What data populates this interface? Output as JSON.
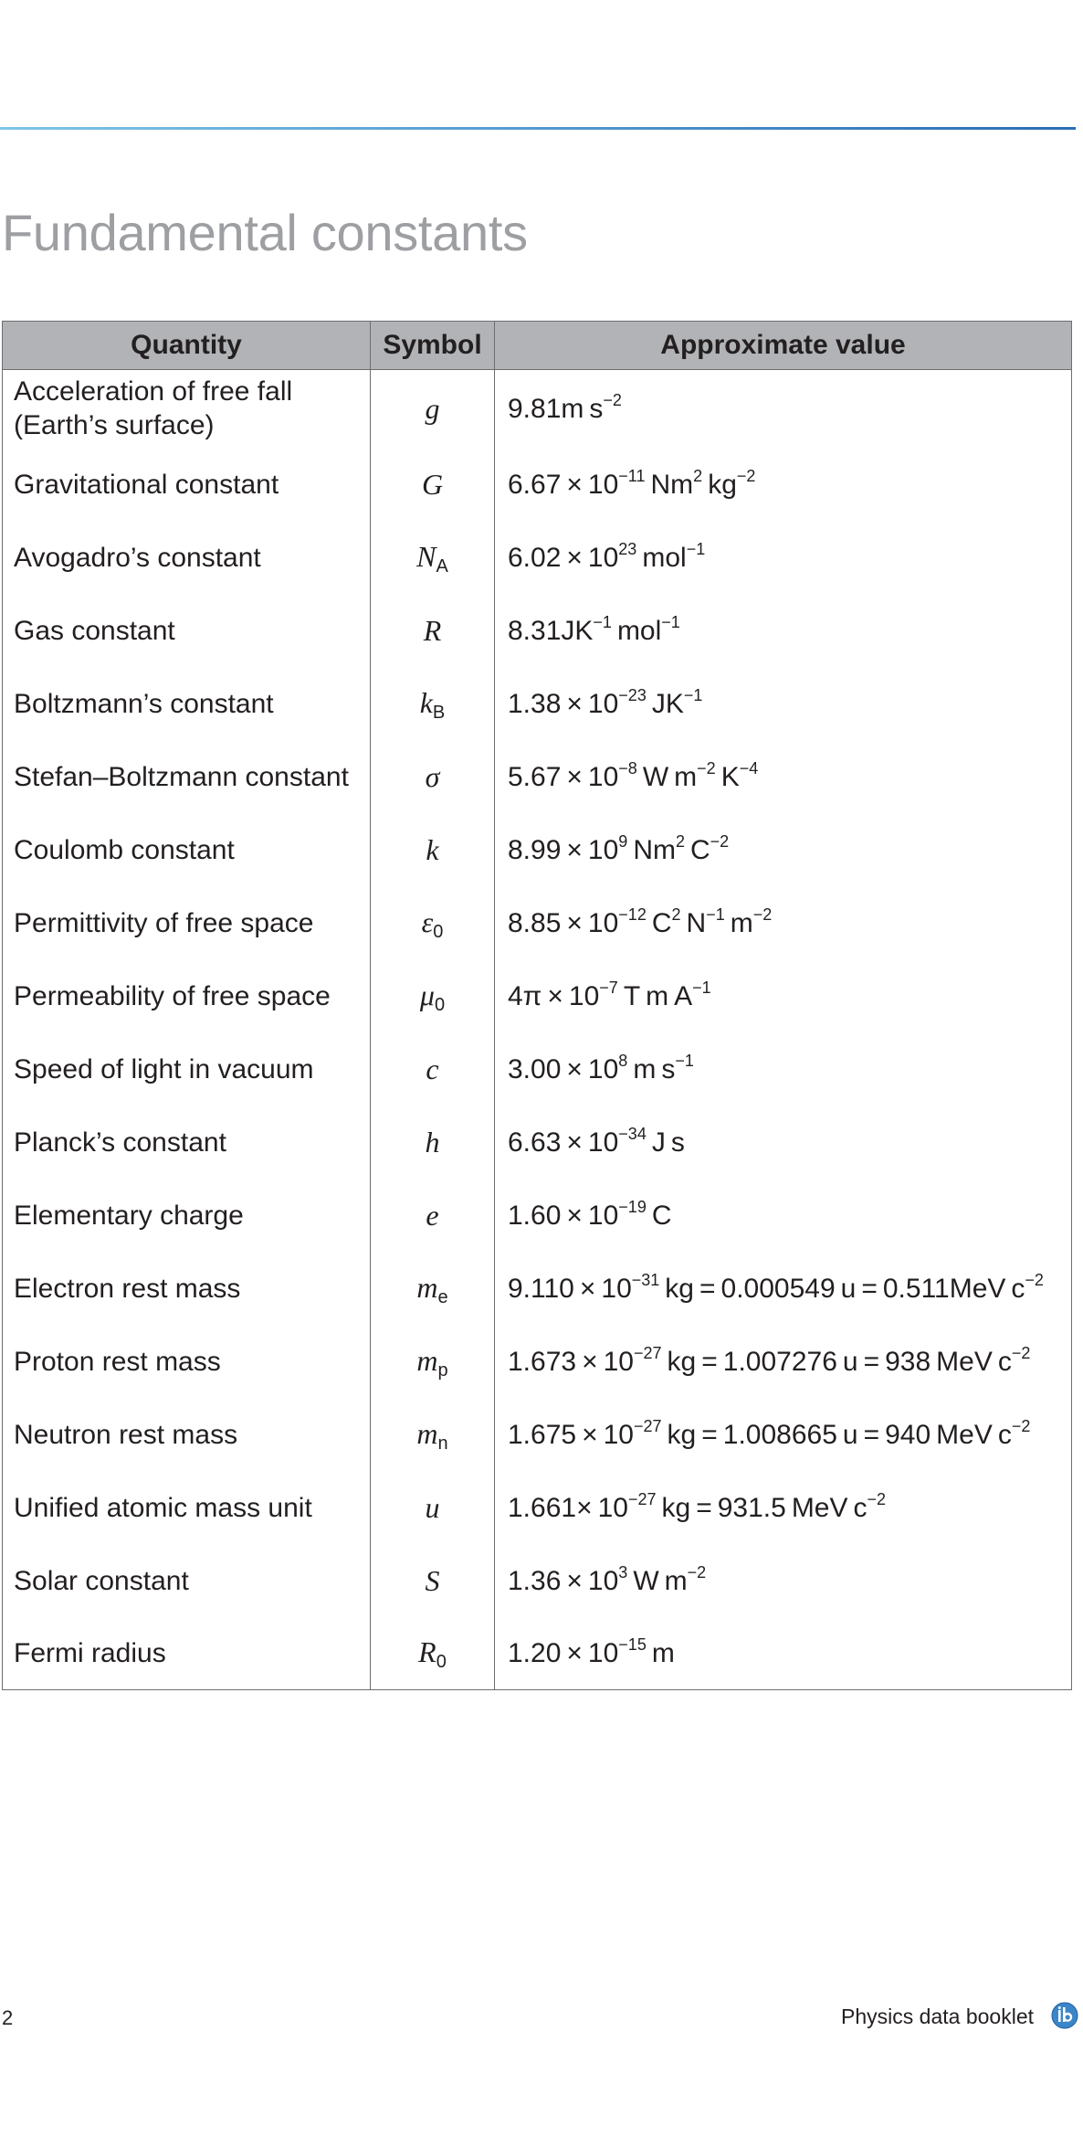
{
  "page": {
    "title": "Fundamental constants",
    "page_number": "2",
    "booklet_title": "Physics data booklet",
    "logo_icon": "ib-logo-icon",
    "accent_color": "#2a6db5"
  },
  "table": {
    "headers": {
      "quantity": "Quantity",
      "symbol": "Symbol",
      "value": "Approximate value"
    },
    "rows": [
      {
        "quantity": [
          "Acceleration of free fall",
          "(Earth’s surface)"
        ],
        "symbol": "g",
        "symbol_sub": "",
        "value": [
          [
            "9.81m s",
            "−2"
          ]
        ]
      },
      {
        "quantity": [
          "Gravitational constant"
        ],
        "symbol": "G",
        "symbol_sub": "",
        "value": [
          [
            "6.67 × 10",
            "−11"
          ],
          [
            " Nm",
            "2"
          ],
          [
            " kg",
            "−2"
          ]
        ]
      },
      {
        "quantity": [
          "Avogadro’s constant"
        ],
        "symbol": "N",
        "symbol_sub": "A",
        "value": [
          [
            "6.02 × 10",
            "23"
          ],
          [
            " mol",
            "−1"
          ]
        ]
      },
      {
        "quantity": [
          "Gas constant"
        ],
        "symbol": "R",
        "symbol_sub": "",
        "value": [
          [
            "8.31JK",
            "−1"
          ],
          [
            " mol",
            "−1"
          ]
        ]
      },
      {
        "quantity": [
          "Boltzmann’s constant"
        ],
        "symbol": "k",
        "symbol_sub": "B",
        "value": [
          [
            "1.38 × 10",
            "−23"
          ],
          [
            " JK",
            "−1"
          ]
        ]
      },
      {
        "quantity": [
          "Stefan–Boltzmann constant"
        ],
        "symbol": "σ",
        "symbol_sub": "",
        "value": [
          [
            "5.67 × 10",
            "−8"
          ],
          [
            " W m",
            "−2"
          ],
          [
            " K",
            "−4"
          ]
        ]
      },
      {
        "quantity": [
          "Coulomb constant"
        ],
        "symbol": "k",
        "symbol_sub": "",
        "value": [
          [
            "8.99 × 10",
            "9"
          ],
          [
            " Nm",
            "2"
          ],
          [
            " C",
            "−2"
          ]
        ]
      },
      {
        "quantity": [
          "Permittivity of free space"
        ],
        "symbol": "ε",
        "symbol_sub": "0",
        "value": [
          [
            "8.85 × 10",
            "−12"
          ],
          [
            " C",
            "2"
          ],
          [
            " N",
            "−1"
          ],
          [
            " m",
            "−2"
          ]
        ]
      },
      {
        "quantity": [
          "Permeability of free space"
        ],
        "symbol": "μ",
        "symbol_sub": "0",
        "value": [
          [
            "4π × 10",
            "−7"
          ],
          [
            " T m A",
            "−1"
          ]
        ]
      },
      {
        "quantity": [
          "Speed of light in vacuum"
        ],
        "symbol": "c",
        "symbol_sub": "",
        "value": [
          [
            "3.00 × 10",
            "8"
          ],
          [
            " m s",
            "−1"
          ]
        ]
      },
      {
        "quantity": [
          "Planck’s constant"
        ],
        "symbol": "h",
        "symbol_sub": "",
        "value": [
          [
            "6.63 × 10",
            "−34"
          ],
          [
            " J s",
            ""
          ]
        ]
      },
      {
        "quantity": [
          "Elementary charge"
        ],
        "symbol": "e",
        "symbol_sub": "",
        "value": [
          [
            "1.60 × 10",
            "−19"
          ],
          [
            " C",
            ""
          ]
        ]
      },
      {
        "quantity": [
          "Electron rest mass"
        ],
        "symbol": "m",
        "symbol_sub": "e",
        "value": [
          [
            "9.110 × 10",
            "−31"
          ],
          [
            " kg = 0.000549 u = 0.511MeV c",
            "−2"
          ]
        ]
      },
      {
        "quantity": [
          "Proton rest mass"
        ],
        "symbol": "m",
        "symbol_sub": "p",
        "value": [
          [
            "1.673 × 10",
            "−27"
          ],
          [
            " kg = 1.007276 u = 938 MeV c",
            "−2"
          ]
        ]
      },
      {
        "quantity": [
          "Neutron rest mass"
        ],
        "symbol": "m",
        "symbol_sub": "n",
        "value": [
          [
            "1.675 × 10",
            "−27"
          ],
          [
            " kg = 1.008665 u = 940 MeV c",
            "−2"
          ]
        ]
      },
      {
        "quantity": [
          "Unified atomic mass unit"
        ],
        "symbol": "u",
        "symbol_sub": "",
        "value": [
          [
            "1.661× 10",
            "−27"
          ],
          [
            " kg = 931.5 MeV c",
            "−2"
          ]
        ]
      },
      {
        "quantity": [
          "Solar constant"
        ],
        "symbol": "S",
        "symbol_sub": "",
        "value": [
          [
            "1.36 × 10",
            "3"
          ],
          [
            " W m",
            "−2"
          ]
        ]
      },
      {
        "quantity": [
          "Fermi radius"
        ],
        "symbol": "R",
        "symbol_sub": "0",
        "value": [
          [
            "1.20 × 10",
            "−15"
          ],
          [
            " m",
            ""
          ]
        ]
      }
    ]
  }
}
